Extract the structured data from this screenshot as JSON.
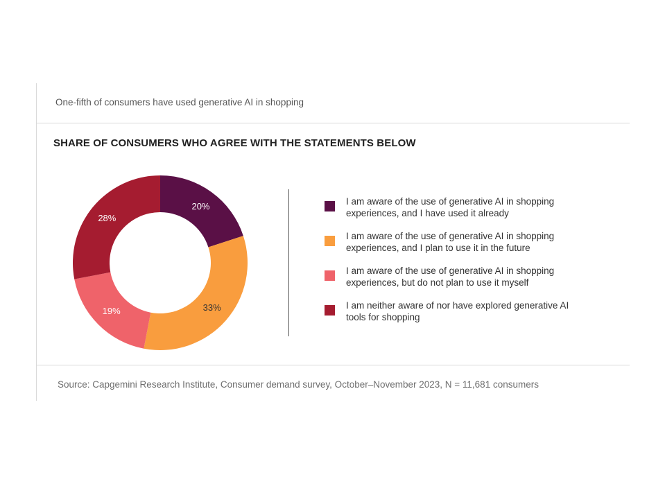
{
  "subtitle": "One-fifth of consumers have used generative AI in shopping",
  "source": "Source: Capgemini Research Institute, Consumer demand survey, October–November 2023, N = 11,681 consumers",
  "chart_data": {
    "type": "pie",
    "variant": "donut",
    "title": "SHARE OF CONSUMERS WHO AGREE WITH THE STATEMENTS BELOW",
    "unit": "%",
    "slices": [
      {
        "label": "I am aware of the use of generative AI in shopping experiences, and I have used it already",
        "value": 20,
        "display": "20%",
        "color": "#5a1046",
        "label_color": "#ffffff"
      },
      {
        "label": "I am aware of the use of generative AI in shopping experiences, and I plan to use it in the future",
        "value": 33,
        "display": "33%",
        "color": "#f99d3e",
        "label_color": "#333333"
      },
      {
        "label": "I am aware of the use of generative AI in shopping experiences, but do not plan to use it myself",
        "value": 19,
        "display": "19%",
        "color": "#ef636a",
        "label_color": "#ffffff"
      },
      {
        "label": "I am neither aware of nor have explored generative AI tools for shopping",
        "value": 28,
        "display": "28%",
        "color": "#a51c30",
        "label_color": "#ffffff"
      }
    ],
    "legend": {
      "position": "right",
      "items": [
        {
          "lines": [
            "I am aware of the use of generative AI in shopping",
            "experiences, and I have used it already"
          ],
          "color": "#5a1046"
        },
        {
          "lines": [
            "I am aware of the use of generative AI in shopping",
            "experiences, and I plan to use it in the future"
          ],
          "color": "#f99d3e"
        },
        {
          "lines": [
            "I am aware of the use of generative AI in shopping",
            "experiences, but do not plan to use it myself"
          ],
          "color": "#ef636a"
        },
        {
          "lines": [
            "I am neither aware of nor have explored generative AI",
            "tools for shopping"
          ],
          "color": "#a51c30"
        }
      ]
    }
  }
}
